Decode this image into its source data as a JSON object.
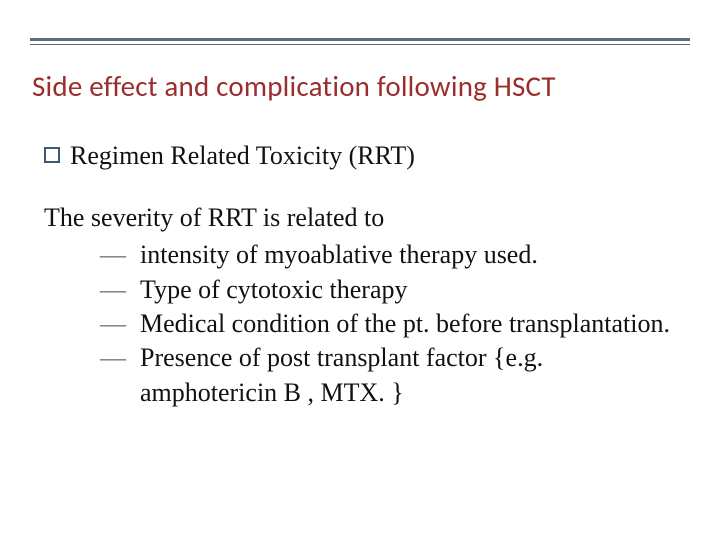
{
  "colors": {
    "title_color": "#9b2d2d",
    "rule_color": "#5a6b7a",
    "bullet_border": "#3a5a78",
    "dash_color": "#6b7a88",
    "text_color": "#111111",
    "background": "#ffffff"
  },
  "typography": {
    "title_font": "Calibri",
    "title_size_pt": 22,
    "body_font": "Georgia",
    "body_size_pt": 20
  },
  "title": "Side effect and complication following HSCT",
  "bullet": {
    "label": "Regimen Related Toxicity (RRT)"
  },
  "lead": "The severity of RRT is related to",
  "items": [
    "intensity of myoablative therapy used.",
    "Type of cytotoxic therapy",
    "Medical condition of the pt. before transplantation.",
    "Presence of post transplant factor {e.g. amphotericin B , MTX. }"
  ]
}
